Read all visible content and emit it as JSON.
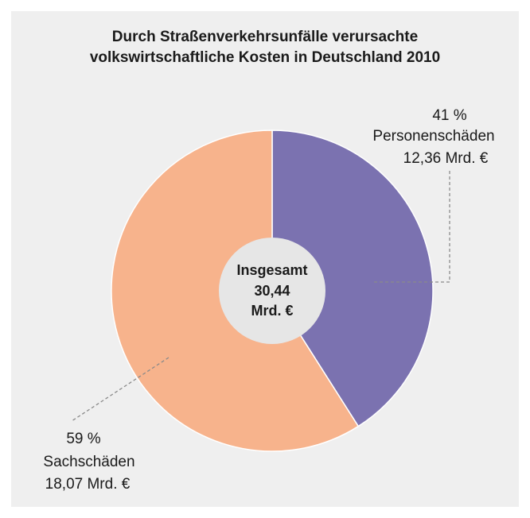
{
  "chart_data": {
    "type": "pie",
    "title": [
      "Durch Straßenverkehrsunfälle verursachte",
      "volkswirtschaftliche Kosten in Deutschland 2010"
    ],
    "categories": [
      "Personenschäden",
      "Sachschäden"
    ],
    "values": [
      41,
      59
    ],
    "value_labels": [
      "41 %",
      "59 %"
    ],
    "amount_labels": [
      "12,36 Mrd. €",
      "18,07 Mrd. €"
    ],
    "colors": [
      "#7b72b0",
      "#f7b38c"
    ],
    "center_label": [
      "Insgesamt",
      "30,44",
      "Mrd. €"
    ]
  }
}
